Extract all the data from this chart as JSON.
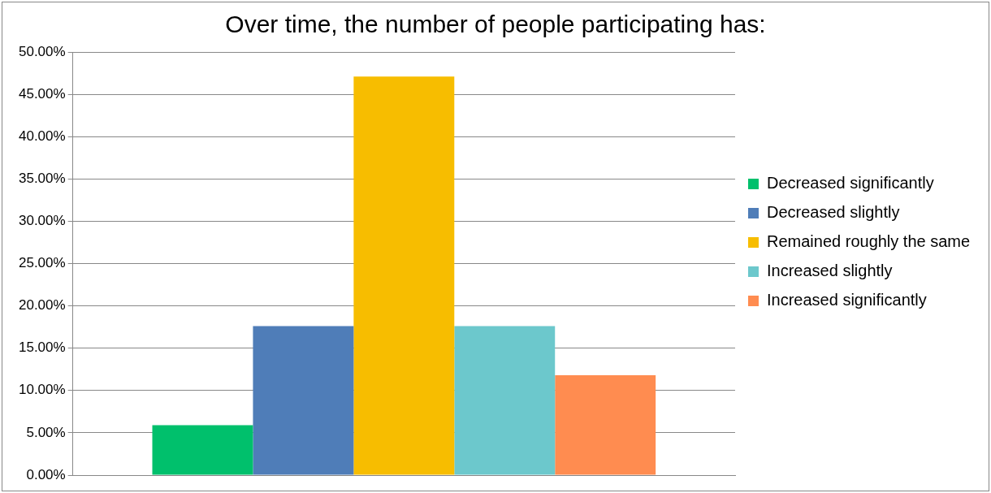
{
  "chart_data": {
    "type": "bar",
    "title": "Over time, the number of people participating has:",
    "categories": [
      null
    ],
    "series": [
      {
        "name": "Decreased significantly",
        "color": "#00c06c",
        "values": [
          5.9
        ]
      },
      {
        "name": "Decreased slightly",
        "color": "#4f7db8",
        "values": [
          17.6
        ]
      },
      {
        "name": "Remained roughly the same",
        "color": "#f7bd00",
        "values": [
          47.1
        ]
      },
      {
        "name": "Increased slightly",
        "color": "#6cc8cc",
        "values": [
          17.6
        ]
      },
      {
        "name": "Increased significantly",
        "color": "#ff8c50",
        "values": [
          11.8
        ]
      }
    ],
    "ylim": [
      0,
      50
    ],
    "yticks": [
      {
        "value": 0,
        "label": "0.00%"
      },
      {
        "value": 5,
        "label": "5.00%"
      },
      {
        "value": 10,
        "label": "10.00%"
      },
      {
        "value": 15,
        "label": "15.00%"
      },
      {
        "value": 20,
        "label": "20.00%"
      },
      {
        "value": 25,
        "label": "25.00%"
      },
      {
        "value": 30,
        "label": "30.00%"
      },
      {
        "value": 35,
        "label": "35.00%"
      },
      {
        "value": 40,
        "label": "40.00%"
      },
      {
        "value": 45,
        "label": "45.00%"
      },
      {
        "value": 50,
        "label": "50.00%"
      }
    ],
    "grid": "y",
    "legend": "right",
    "tick_labels": "y"
  }
}
